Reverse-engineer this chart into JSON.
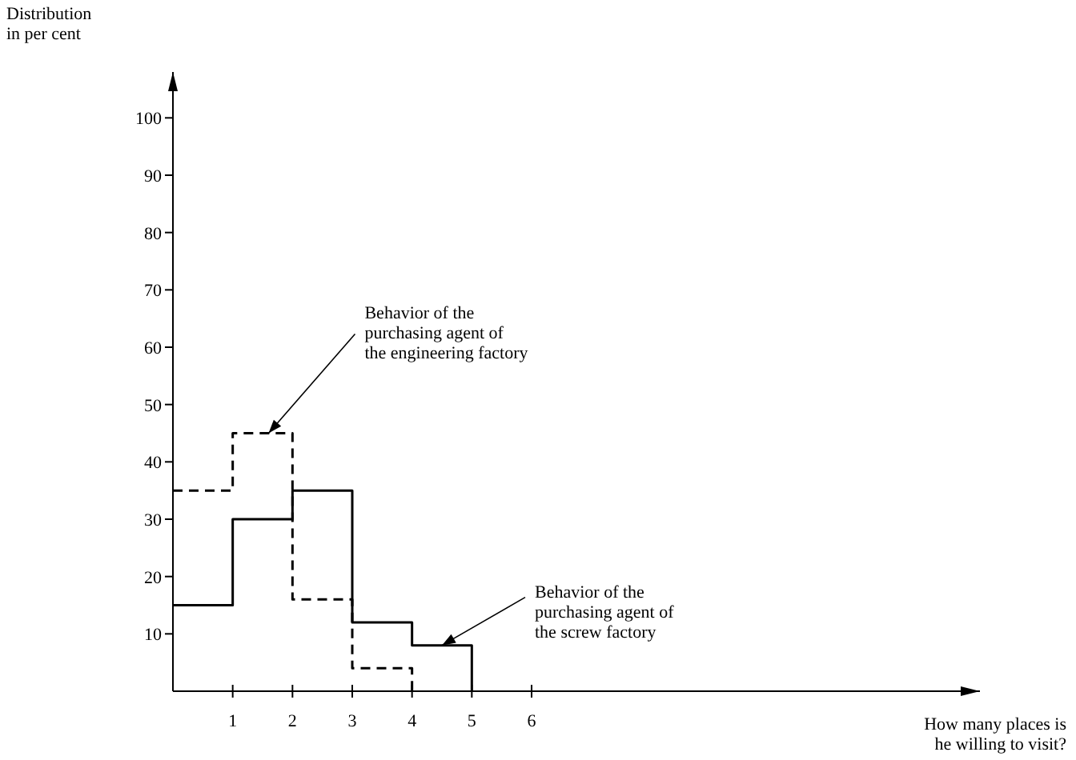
{
  "chart_data": {
    "type": "step",
    "xlabel": "How many places is\nhe willing to visit?",
    "ylabel": "Distribution\nin per cent",
    "xlim": [
      0,
      13.5
    ],
    "ylim": [
      0,
      108
    ],
    "xticks": [
      1,
      2,
      3,
      4,
      5,
      6
    ],
    "yticks": [
      10,
      20,
      30,
      40,
      50,
      60,
      70,
      80,
      90,
      100
    ],
    "series": [
      {
        "color": "#000000",
        "line_style": "dashed",
        "x": [
          0,
          1,
          2,
          3,
          4
        ],
        "values": [
          35,
          45,
          16,
          4,
          0
        ]
      },
      {
        "color": "#000000",
        "line_style": "solid",
        "x": [
          0,
          1,
          2,
          3,
          4,
          5
        ],
        "values": [
          15,
          30,
          35,
          12,
          8,
          0
        ]
      }
    ],
    "annotations": [
      {
        "text": "Behavior of the\npurchasing agent of\nthe engineering factory",
        "x": 1.6,
        "y": 45
      },
      {
        "text": "Behavior of the\npurchasing agent of\nthe screw factory",
        "x": 4.5,
        "y": 8
      }
    ]
  }
}
